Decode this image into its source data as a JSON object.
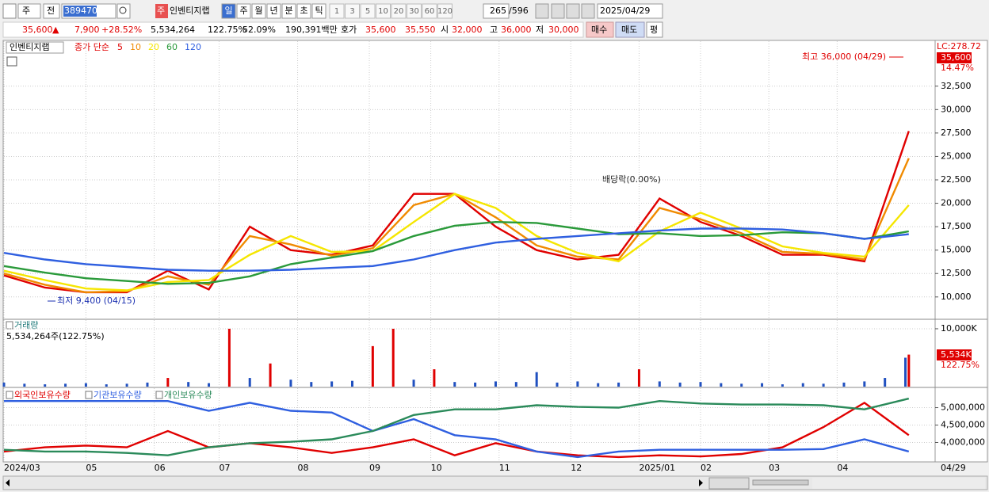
{
  "toolbar": {
    "market": "주",
    "prev": "전",
    "code": "389470",
    "name_tag": "주",
    "name": "인벤티지랩",
    "periods": [
      "일",
      "주",
      "월",
      "년",
      "분",
      "초",
      "틱"
    ],
    "counts": [
      "1",
      "3",
      "5",
      "10",
      "20",
      "30",
      "60",
      "120"
    ],
    "shown": "265",
    "total": "/596",
    "date": "2025/04/29"
  },
  "quote": {
    "price": "35,600",
    "arrow": "▲",
    "change": "7,900",
    "change_pct": "+28.52%",
    "volume": "5,534,264",
    "volume_pct": "122.75%",
    "rate": "52.09%",
    "amount": "190,391백만",
    "bid_ask_label": "호가",
    "ask": "35,600",
    "bid": "35,550",
    "open_label": "시",
    "open": "32,000",
    "high_label": "고",
    "high": "36,000",
    "low_label": "저",
    "low": "30,000",
    "buy": "매수",
    "sell": "매도",
    "avg": "평"
  },
  "chart_data": [
    {
      "type": "line",
      "title": "인벤티지랩",
      "subtitle": "종가 단순",
      "x": [
        0,
        12,
        24,
        36,
        48,
        60,
        72,
        84,
        96,
        108,
        120,
        132,
        144,
        156,
        168,
        180,
        192,
        204,
        216,
        228,
        240,
        252,
        265
      ],
      "series": [
        {
          "name": "5",
          "color": "#e00000",
          "values": [
            12300,
            11000,
            10500,
            10500,
            12800,
            10800,
            17500,
            15000,
            14500,
            15500,
            21000,
            21000,
            17500,
            15000,
            14000,
            14500,
            20500,
            18000,
            16500,
            14500,
            14500,
            13800,
            27700
          ]
        },
        {
          "name": "10",
          "color": "#f08a00",
          "values": [
            12500,
            11300,
            10500,
            10600,
            12200,
            11300,
            16500,
            15600,
            14400,
            15200,
            19800,
            21000,
            18500,
            15500,
            14300,
            14000,
            19500,
            18300,
            16800,
            14800,
            14600,
            14000,
            24800
          ]
        },
        {
          "name": "20",
          "color": "#f5e600",
          "values": [
            12800,
            11800,
            10900,
            10700,
            11600,
            11800,
            14500,
            16500,
            14800,
            14900,
            18000,
            21000,
            19500,
            16500,
            14700,
            13800,
            17000,
            19000,
            17300,
            15400,
            14700,
            14300,
            19800
          ]
        },
        {
          "name": "60",
          "color": "#2a9a3a",
          "values": [
            13300,
            12600,
            12000,
            11700,
            11400,
            11500,
            12200,
            13500,
            14200,
            14900,
            16500,
            17600,
            18000,
            17900,
            17300,
            16700,
            16800,
            16500,
            16600,
            16900,
            16800,
            16200,
            17000
          ]
        },
        {
          "name": "120",
          "color": "#2f5fe0",
          "values": [
            14700,
            14000,
            13500,
            13200,
            12900,
            12800,
            12800,
            12900,
            13100,
            13300,
            14000,
            15000,
            15800,
            16200,
            16500,
            16800,
            17100,
            17300,
            17300,
            17200,
            16800,
            16200,
            16700
          ]
        }
      ],
      "xlim": [
        0,
        272
      ],
      "ylim": [
        7700,
        37300
      ],
      "yticks": [
        {
          "value": 10000,
          "label": "10,000"
        },
        {
          "value": 12500,
          "label": "12,500"
        },
        {
          "value": 15000,
          "label": "15,000"
        },
        {
          "value": 17500,
          "label": "17,500"
        },
        {
          "value": 20000,
          "label": "20,000"
        },
        {
          "value": 22500,
          "label": "22,500"
        },
        {
          "value": 25000,
          "label": "25,000"
        },
        {
          "value": 27500,
          "label": "27,500"
        },
        {
          "value": 30000,
          "label": "30,000"
        },
        {
          "value": 32500,
          "label": "32,500"
        }
      ],
      "annotations": [
        "최고 36,000 (04/29)",
        "최저 9,400 (04/15)",
        "배당락(0.00%)"
      ],
      "right_labels": {
        "lc": "LC:278.72",
        "last": "35,600",
        "last_pct": "14.47%"
      }
    },
    {
      "type": "bar",
      "title": "거래량",
      "subtitle": "5,534,264주(122.75%)",
      "x": [
        0,
        6,
        12,
        18,
        24,
        30,
        36,
        42,
        48,
        54,
        60,
        66,
        72,
        78,
        84,
        90,
        96,
        102,
        108,
        114,
        120,
        126,
        132,
        138,
        144,
        150,
        156,
        162,
        168,
        174,
        180,
        186,
        192,
        198,
        204,
        210,
        216,
        222,
        228,
        234,
        240,
        246,
        252,
        258,
        264,
        265
      ],
      "values": [
        700,
        500,
        400,
        500,
        600,
        400,
        500,
        700,
        1500,
        800,
        600,
        10000,
        1500,
        4000,
        1200,
        800,
        900,
        1000,
        7000,
        10000,
        1200,
        3000,
        800,
        700,
        900,
        800,
        2500,
        700,
        900,
        600,
        700,
        3000,
        900,
        700,
        800,
        600,
        500,
        600,
        400,
        600,
        500,
        700,
        900,
        1500,
        5000,
        5534
      ],
      "colors": [
        "#2050c0",
        "#2050c0",
        "#2050c0",
        "#2050c0",
        "#2050c0",
        "#2050c0",
        "#2050c0",
        "#2050c0",
        "#e00000",
        "#2050c0",
        "#2050c0",
        "#e00000",
        "#2050c0",
        "#e00000",
        "#2050c0",
        "#2050c0",
        "#2050c0",
        "#2050c0",
        "#e00000",
        "#e00000",
        "#2050c0",
        "#e00000",
        "#2050c0",
        "#2050c0",
        "#2050c0",
        "#2050c0",
        "#2050c0",
        "#2050c0",
        "#2050c0",
        "#2050c0",
        "#2050c0",
        "#e00000",
        "#2050c0",
        "#2050c0",
        "#2050c0",
        "#2050c0",
        "#2050c0",
        "#2050c0",
        "#2050c0",
        "#2050c0",
        "#2050c0",
        "#2050c0",
        "#2050c0",
        "#2050c0",
        "#2050c0",
        "#e00000"
      ],
      "xlim": [
        0,
        272
      ],
      "ylim": [
        0,
        11500
      ],
      "yticks": [
        {
          "value": 10000,
          "label": "10,000K"
        }
      ],
      "last_label": "5,534K",
      "last_pct": "122.75%"
    },
    {
      "type": "line",
      "x": [
        0,
        12,
        24,
        36,
        48,
        60,
        72,
        84,
        96,
        108,
        120,
        132,
        144,
        156,
        168,
        180,
        192,
        204,
        216,
        228,
        240,
        252,
        265
      ],
      "series": [
        {
          "name": "외국인보유수량",
          "color": "#e00000",
          "values": [
            3740000,
            3860000,
            3910000,
            3860000,
            4330000,
            3860000,
            3980000,
            3860000,
            3700000,
            3860000,
            4090000,
            3630000,
            3980000,
            3740000,
            3630000,
            3580000,
            3630000,
            3600000,
            3670000,
            3860000,
            4440000,
            5140000,
            4210000
          ]
        },
        {
          "name": "기관보유수량",
          "color": "#2f5fe0",
          "values": [
            5190000,
            5190000,
            5190000,
            5190000,
            5190000,
            4910000,
            5140000,
            4910000,
            4860000,
            4330000,
            4670000,
            4210000,
            4090000,
            3740000,
            3580000,
            3740000,
            3790000,
            3790000,
            3790000,
            3790000,
            3810000,
            4090000,
            3740000
          ]
        },
        {
          "name": "개인보유수량",
          "color": "#2a8a5a",
          "values": [
            3790000,
            3740000,
            3740000,
            3700000,
            3630000,
            3860000,
            3980000,
            4020000,
            4090000,
            4330000,
            4790000,
            4950000,
            4950000,
            5070000,
            5020000,
            5000000,
            5190000,
            5120000,
            5090000,
            5090000,
            5070000,
            4950000,
            5260000
          ]
        }
      ],
      "xlim": [
        0,
        272
      ],
      "ylim": [
        3465000,
        5558000
      ],
      "yticks": [
        {
          "value": 4000000,
          "label": "4,000,000"
        },
        {
          "value": 4500000,
          "label": "4,500,000"
        },
        {
          "value": 5000000,
          "label": "5,000,000"
        }
      ],
      "xticks": [
        {
          "value": 0,
          "label": "2024/03"
        },
        {
          "value": 24,
          "label": "05"
        },
        {
          "value": 44,
          "label": "06"
        },
        {
          "value": 63,
          "label": "07"
        },
        {
          "value": 86,
          "label": "08"
        },
        {
          "value": 107,
          "label": "09"
        },
        {
          "value": 125,
          "label": "10"
        },
        {
          "value": 145,
          "label": "11"
        },
        {
          "value": 166,
          "label": "12"
        },
        {
          "value": 186,
          "label": "2025/01"
        },
        {
          "value": 204,
          "label": "02"
        },
        {
          "value": 224,
          "label": "03"
        },
        {
          "value": 244,
          "label": "04"
        }
      ],
      "end_label": "04/29"
    }
  ]
}
